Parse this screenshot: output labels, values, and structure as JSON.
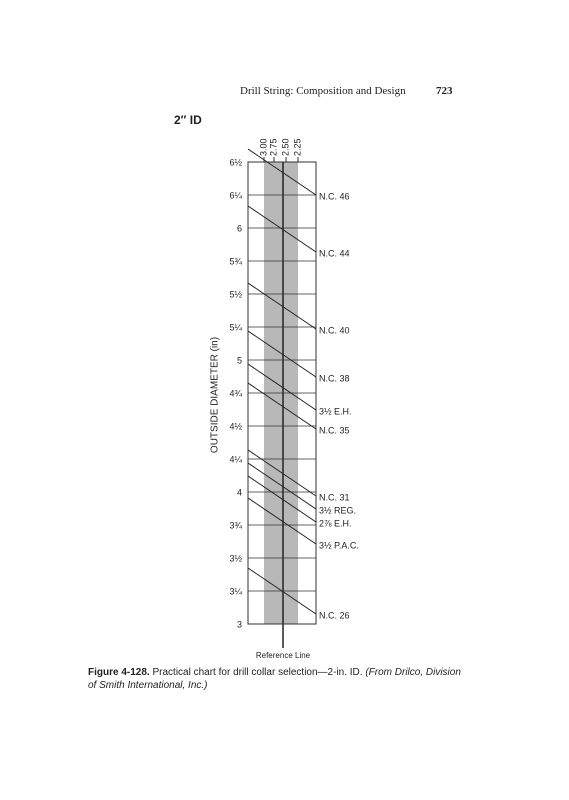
{
  "header": {
    "title": "Drill String: Composition and Design",
    "page_number": "723"
  },
  "figure": {
    "heading": "2″ ID",
    "top_labels": [
      "3.00",
      "2.75",
      "2.50",
      "2.25"
    ],
    "od_labels": [
      "6½",
      "6¼",
      "6",
      "5¾",
      "5½",
      "5¼",
      "5",
      "4¾",
      "4½",
      "4¼",
      "4",
      "3¾",
      "3½",
      "3¼",
      "3"
    ],
    "connection_labels": [
      "N.C. 46",
      "N.C. 44",
      "N.C. 40",
      "N.C. 38",
      "3½ E.H.",
      "N.C. 35",
      "N.C. 31",
      "3½ REG.",
      "2⅞ E.H.",
      "3½ P.A.C.",
      "N.C. 26"
    ],
    "axis_label": "OUTSIDE DIAMETER (in)",
    "reference_label": "Reference Line"
  },
  "caption": {
    "label": "Figure 4-128.",
    "text": "Practical chart for drill collar selection—2-in. ID.",
    "source": "(From Drilco, Division of Smith International, Inc.)"
  }
}
